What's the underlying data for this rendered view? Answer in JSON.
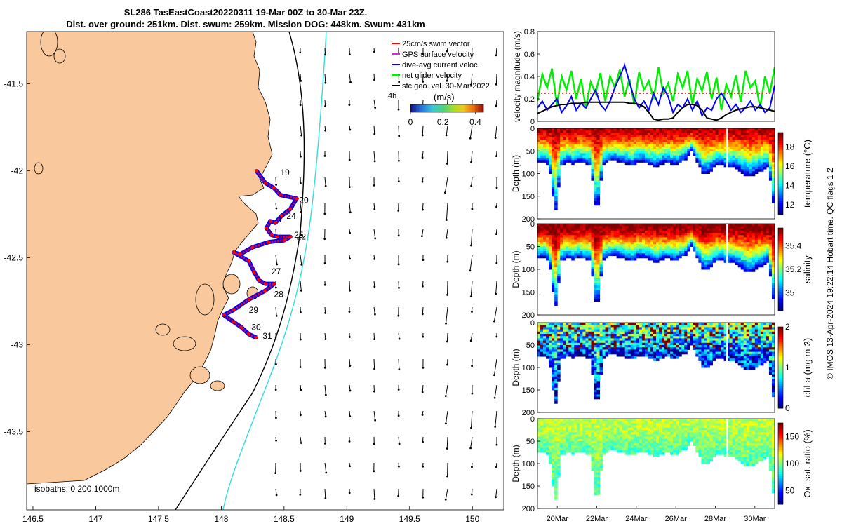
{
  "title": {
    "line1": "SL286 TasEastCoast20220311 19-Mar 00Z to 30-Mar 23Z.",
    "line2": "Dist. over ground: 251km. Dist. swum: 259km. Mission DOG: 448km. Swum: 431km"
  },
  "colors": {
    "land": "#f9c89c",
    "coast": "#000000",
    "iso200": "#000000",
    "iso1000": "#33dddd",
    "swim": "#ff0000",
    "gps": "#cc33cc",
    "current": "#0000ff",
    "net": "#00ee00",
    "sfc": "#000000"
  },
  "copyright": "© IMOS 13-Apr-2024 19:22:14 Hobart time. QC flags 1  2",
  "chart_data": [
    {
      "type": "scatter",
      "name": "map",
      "xlim": [
        146.45,
        150.25
      ],
      "ylim": [
        -43.95,
        -41.2
      ],
      "xticks": [
        "146.5",
        "147",
        "147.5",
        "148",
        "148.5",
        "149",
        "149.5",
        "150"
      ],
      "xtick_values": [
        146.5,
        147,
        147.5,
        148,
        148.5,
        149,
        149.5,
        150
      ],
      "yticks": [
        "-41.5",
        "-42",
        "-42.5",
        "-43",
        "-43.5"
      ],
      "ytick_values": [
        -41.5,
        -42,
        -42.5,
        -43,
        -43.5
      ],
      "isobath_label": "isobaths: 0   200  1000m",
      "legend": [
        {
          "label": "25cm/s swim vector",
          "color": "#ff0000"
        },
        {
          "label": "GPS surface velocity",
          "color": "#cc33cc"
        },
        {
          "label": "dive-avg current veloc.",
          "color": "#0000ff"
        },
        {
          "label": "net glider velocity",
          "color": "#00ee00"
        },
        {
          "label": "sfc geo. vel. 30-Mar-2022",
          "color": "#000000"
        }
      ],
      "colorbar": {
        "label": "(m/s)",
        "prefix": "4h",
        "ticks": [
          "0",
          "0.2",
          "0.4"
        ],
        "tick_values": [
          0,
          0.2,
          0.4
        ],
        "range": [
          0,
          0.45
        ]
      },
      "track": [
        [
          148.28,
          -42.0
        ],
        [
          148.35,
          -42.07
        ],
        [
          148.42,
          -42.1
        ],
        [
          148.47,
          -42.14
        ],
        [
          148.6,
          -42.16
        ],
        [
          148.55,
          -42.22
        ],
        [
          148.48,
          -42.26
        ],
        [
          148.43,
          -42.3
        ],
        [
          148.39,
          -42.29
        ],
        [
          148.36,
          -42.33
        ],
        [
          148.4,
          -42.37
        ],
        [
          148.45,
          -42.38
        ],
        [
          148.55,
          -42.38
        ],
        [
          148.5,
          -42.4
        ],
        [
          148.38,
          -42.41
        ],
        [
          148.25,
          -42.44
        ],
        [
          148.15,
          -42.48
        ],
        [
          148.1,
          -42.47
        ],
        [
          148.22,
          -42.52
        ],
        [
          148.26,
          -42.58
        ],
        [
          148.3,
          -42.63
        ],
        [
          148.35,
          -42.65
        ],
        [
          148.42,
          -42.65
        ],
        [
          148.35,
          -42.69
        ],
        [
          148.22,
          -42.74
        ],
        [
          148.1,
          -42.8
        ],
        [
          148.02,
          -42.83
        ],
        [
          148.1,
          -42.87
        ],
        [
          148.16,
          -42.9
        ],
        [
          148.22,
          -42.94
        ],
        [
          148.28,
          -42.96
        ]
      ],
      "day_labels": [
        {
          "text": "19",
          "lon": 148.47,
          "lat": -42.01
        },
        {
          "text": "20",
          "lon": 148.62,
          "lat": -42.17
        },
        {
          "text": "24",
          "lon": 148.52,
          "lat": -42.26
        },
        {
          "text": "1",
          "lon": 148.45,
          "lat": -42.28
        },
        {
          "text": "25",
          "lon": 148.58,
          "lat": -42.37
        },
        {
          "text": "22",
          "lon": 148.6,
          "lat": -42.38
        },
        {
          "text": "27",
          "lon": 148.4,
          "lat": -42.58
        },
        {
          "text": "28",
          "lon": 148.42,
          "lat": -42.71
        },
        {
          "text": "29",
          "lon": 148.22,
          "lat": -42.8
        },
        {
          "text": "30",
          "lon": 148.24,
          "lat": -42.9
        },
        {
          "text": "31",
          "lon": 148.33,
          "lat": -42.95
        }
      ]
    },
    {
      "type": "line",
      "name": "velocity",
      "ylabel": "velocity magnitude (m/s)",
      "ylim": [
        0,
        0.8
      ],
      "yticks": [
        "0",
        "0.2",
        "0.4",
        "0.6",
        "0.8"
      ],
      "ytick_values": [
        0,
        0.2,
        0.4,
        0.6,
        0.8
      ],
      "xlim": [
        0,
        12
      ],
      "series": [
        {
          "name": "net glider velocity",
          "color": "#00ee00",
          "values": [
            0.18,
            0.42,
            0.3,
            0.47,
            0.15,
            0.4,
            0.28,
            0.45,
            0.2,
            0.38,
            0.12,
            0.35,
            0.25,
            0.43,
            0.18,
            0.4,
            0.3,
            0.46,
            0.22,
            0.38,
            0.15,
            0.44,
            0.28,
            0.36,
            0.2,
            0.48,
            0.25,
            0.34,
            0.18,
            0.42,
            0.3,
            0.45,
            0.15,
            0.38,
            0.27,
            0.44,
            0.2,
            0.39,
            0.1,
            0.33,
            0.22,
            0.41,
            0.17,
            0.45,
            0.3,
            0.36,
            0.12,
            0.4,
            0.25,
            0.48
          ]
        },
        {
          "name": "dive-avg current veloc.",
          "color": "#0000ff",
          "values": [
            0.12,
            0.18,
            0.1,
            0.15,
            0.2,
            0.08,
            0.14,
            0.22,
            0.1,
            0.16,
            0.12,
            0.2,
            0.28,
            0.15,
            0.1,
            0.18,
            0.3,
            0.4,
            0.5,
            0.35,
            0.2,
            0.12,
            0.18,
            0.1,
            0.25,
            0.15,
            0.3,
            0.22,
            0.08,
            0.15,
            0.12,
            0.2,
            0.1,
            0.18,
            0.05,
            0.12,
            0.1,
            0.2,
            0.25,
            0.18,
            0.1,
            0.15,
            0.08,
            0.12,
            0.18,
            0.1,
            0.15,
            0.08,
            0.12,
            0.32
          ]
        },
        {
          "name": "sfc geo. vel. 30-Mar-2022",
          "color": "#000000",
          "values": [
            0.07,
            0.09,
            0.11,
            0.13,
            0.14,
            0.15,
            0.15,
            0.16,
            0.16,
            0.16,
            0.17,
            0.17,
            0.17,
            0.17,
            0.17,
            0.17,
            0.17,
            0.17,
            0.17,
            0.16,
            0.16,
            0.15,
            0.13,
            0.08,
            0.02,
            0.01,
            0.02,
            0.02,
            0.03,
            0.08,
            0.12,
            0.15,
            0.15,
            0.14,
            0.1,
            0.03,
            0.02,
            0.01,
            0.03,
            0.06,
            0.08,
            0.1,
            0.11,
            0.12,
            0.13,
            0.13,
            0.12,
            0.11,
            0.1,
            0.09
          ]
        },
        {
          "name": "25cm/s swim vector",
          "color": "#ff0000",
          "values": [
            0.25,
            0.25,
            0.25,
            0.25,
            0.25,
            0.25,
            0.25,
            0.25,
            0.25,
            0.25,
            0.25,
            0.25,
            0.25,
            0.25,
            0.25,
            0.25,
            0.25,
            0.25,
            0.25,
            0.25,
            0.25,
            0.25,
            0.25,
            0.25,
            0.25,
            0.25,
            0.25,
            0.25,
            0.25,
            0.25,
            0.25,
            0.25,
            0.25,
            0.25,
            0.25,
            0.25,
            0.25,
            0.25,
            0.25,
            0.25,
            0.25,
            0.25,
            0.25,
            0.25,
            0.25,
            0.25,
            0.25,
            0.25,
            0.25,
            0.25
          ]
        }
      ]
    },
    {
      "type": "heatmap",
      "name": "temperature",
      "ylabel": "Depth (m)",
      "cblabel": "temperature (°C)",
      "ylim": [
        200,
        0
      ],
      "yticks": [
        "0",
        "50",
        "100",
        "150",
        "200"
      ],
      "ytick_values": [
        0,
        50,
        100,
        150,
        200
      ],
      "crange": [
        11,
        19.5
      ],
      "cticks": [
        "12",
        "14",
        "16",
        "18"
      ],
      "ctick_values": [
        12,
        14,
        16,
        18
      ],
      "surface_value": 19,
      "deep_value": 11.5
    },
    {
      "type": "heatmap",
      "name": "salinity",
      "ylabel": "Depth (m)",
      "cblabel": "salinity",
      "ylim": [
        200,
        0
      ],
      "yticks": [
        "0",
        "50",
        "100",
        "150",
        "200"
      ],
      "ytick_values": [
        0,
        50,
        100,
        150,
        200
      ],
      "crange": [
        34.85,
        35.55
      ],
      "cticks": [
        "35",
        "35.2",
        "35.4"
      ],
      "ctick_values": [
        35,
        35.2,
        35.4
      ],
      "surface_value": 35.55,
      "deep_value": 34.9
    },
    {
      "type": "heatmap",
      "name": "chl-a",
      "ylabel": "Depth (m)",
      "cblabel": "chl-a (mg m-3)",
      "ylim": [
        200,
        0
      ],
      "yticks": [
        "0",
        "50",
        "100",
        "150",
        "200"
      ],
      "ytick_values": [
        0,
        50,
        100,
        150,
        200
      ],
      "crange": [
        0,
        2
      ],
      "cticks": [
        "0",
        "1",
        "2"
      ],
      "ctick_values": [
        0,
        1,
        2
      ],
      "surface_value": 0.9,
      "deep_value": 0.1
    },
    {
      "type": "heatmap",
      "name": "oxygen",
      "ylabel": "Depth (m)",
      "cblabel": "Ox. sat. ratio (%)",
      "ylim": [
        200,
        0
      ],
      "yticks": [
        "0",
        "50",
        "100",
        "150",
        "200"
      ],
      "ytick_values": [
        0,
        50,
        100,
        150,
        200
      ],
      "crange": [
        25,
        175
      ],
      "cticks": [
        "50",
        "100",
        "150"
      ],
      "ctick_values": [
        50,
        100,
        150
      ],
      "surface_value": 110,
      "deep_value": 90,
      "xticks": [
        "20Mar",
        "22Mar",
        "24Mar",
        "26Mar",
        "28Mar",
        "30Mar"
      ],
      "xtick_values": [
        1,
        3,
        5,
        7,
        9,
        11
      ],
      "xlim": [
        0,
        12
      ]
    }
  ],
  "section_profile": {
    "days": [
      0,
      0.3,
      0.6,
      0.9,
      1.2,
      1.5,
      1.8,
      2.1,
      2.4,
      2.7,
      3.0,
      3.3,
      3.6,
      3.9,
      4.2,
      4.5,
      4.8,
      5.1,
      5.4,
      5.7,
      6.0,
      6.3,
      6.6,
      6.9,
      7.2,
      7.5,
      7.8,
      8.1,
      8.4,
      8.7,
      9.0,
      9.3,
      9.6,
      9.9,
      10.2,
      10.5,
      10.8,
      11.1,
      11.4,
      11.7,
      12
    ],
    "bottom_depth": [
      75,
      70,
      80,
      190,
      80,
      72,
      78,
      70,
      75,
      80,
      195,
      82,
      70,
      68,
      72,
      75,
      80,
      70,
      72,
      78,
      82,
      76,
      72,
      80,
      75,
      65,
      45,
      75,
      100,
      95,
      80,
      78,
      85,
      80,
      90,
      100,
      105,
      95,
      90,
      80,
      190
    ]
  }
}
